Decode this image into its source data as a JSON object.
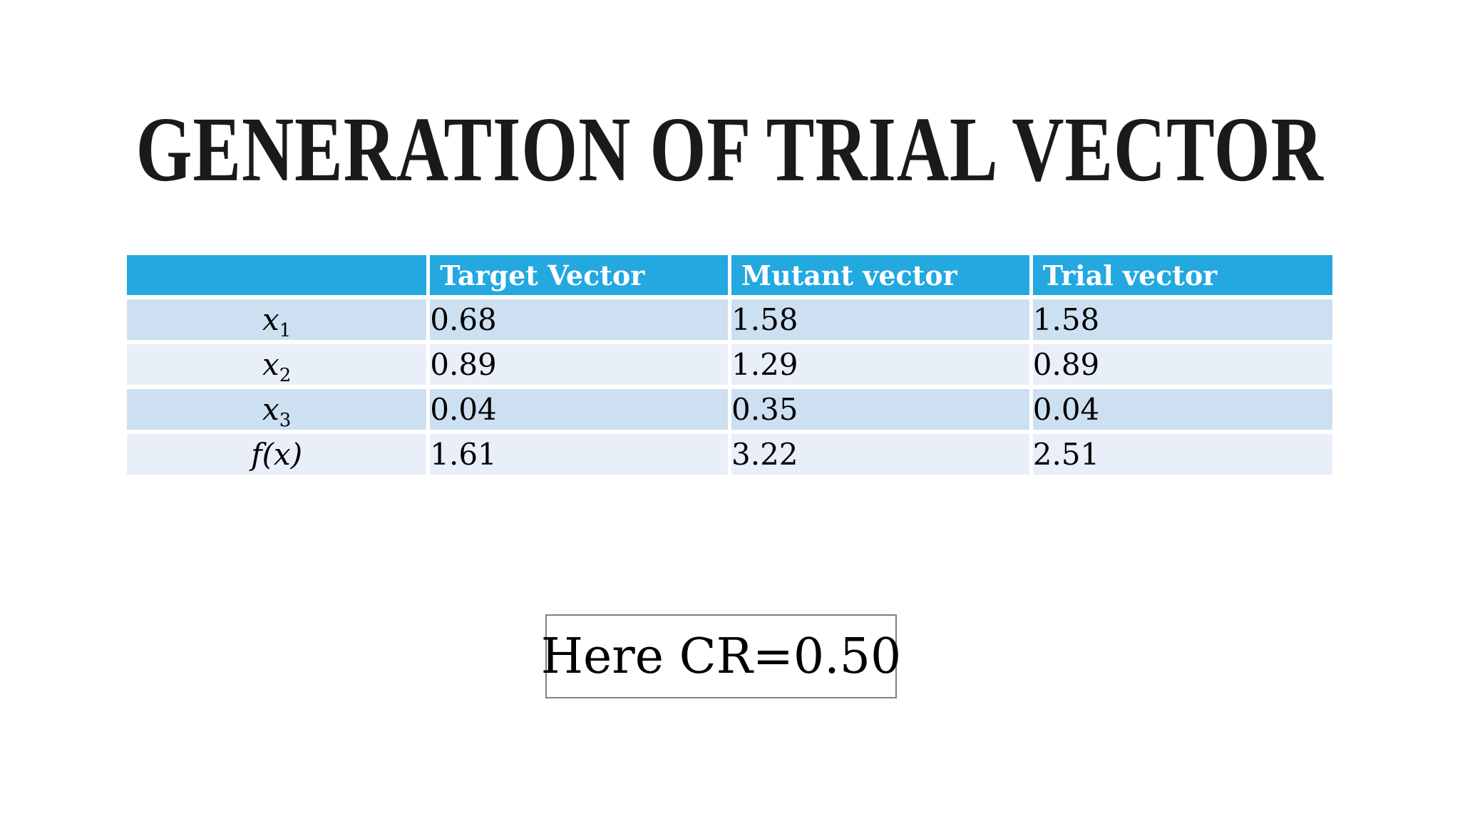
{
  "slide": {
    "title": "GENERATION OF TRIAL VECTOR",
    "note_box": {
      "text": "Here CR=0.50"
    }
  },
  "table": {
    "headers": [
      "",
      "Target Vector",
      "Mutant vector",
      "Trial vector"
    ],
    "rows": [
      {
        "label": {
          "base": "x",
          "sub": "1"
        },
        "cells": [
          "0.68",
          "1.58",
          "1.58"
        ]
      },
      {
        "label": {
          "base": "x",
          "sub": "2"
        },
        "cells": [
          "0.89",
          "1.29",
          "0.89"
        ]
      },
      {
        "label": {
          "base": "x",
          "sub": "3"
        },
        "cells": [
          "0.04",
          "0.35",
          "0.04"
        ]
      },
      {
        "label": {
          "base": "f(x)",
          "sub": ""
        },
        "cells": [
          "1.61",
          "3.22",
          "2.51"
        ]
      }
    ]
  },
  "colors": {
    "background": "#FFFFFF",
    "title_text": "#1A1A1A",
    "header_bg": "#23A8E0",
    "header_text": "#FFFFFF",
    "row_dark": "#CDE0F2",
    "row_light": "#E8EFF9",
    "body_text": "#000000",
    "note_border": "#808080"
  }
}
